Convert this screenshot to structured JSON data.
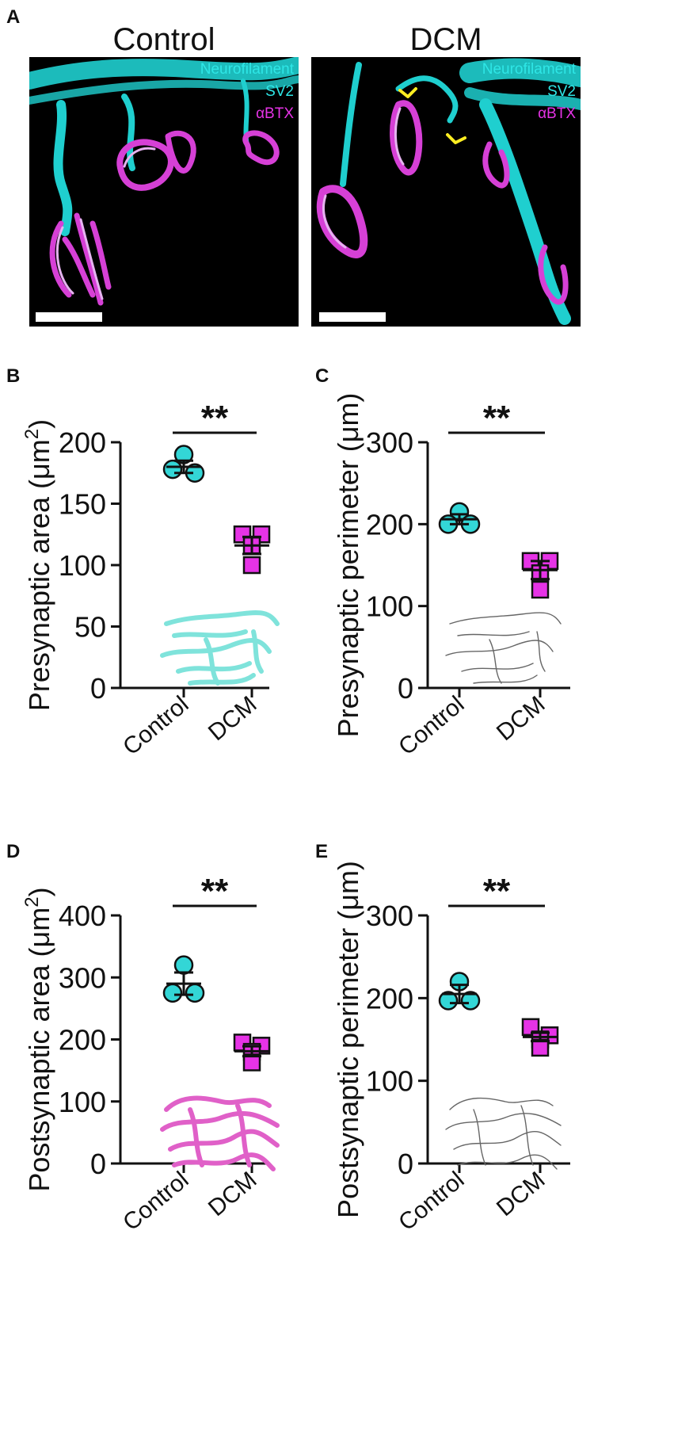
{
  "figure": {
    "panel_a": {
      "letter": "A",
      "images": [
        {
          "title": "Control",
          "legend": [
            {
              "text": "Neurofilament",
              "color": "#2ee6e6"
            },
            {
              "text": "SV2",
              "color": "#2ee6e6"
            },
            {
              "text": "αBTX",
              "color": "#e633e6"
            }
          ]
        },
        {
          "title": "DCM",
          "legend": [
            {
              "text": "Neurofilament",
              "color": "#2ee6e6"
            },
            {
              "text": "SV2",
              "color": "#2ee6e6"
            },
            {
              "text": "αBTX",
              "color": "#e633e6"
            }
          ]
        }
      ]
    }
  },
  "colors": {
    "control": "#33d6d6",
    "dcm": "#e633e6",
    "arrowhead": "#ffee22",
    "postsyn_illustration": "#e060c8",
    "presyn_illustration": "#7fe3db"
  },
  "chart_data": [
    {
      "panel": "B",
      "type": "scatter",
      "ylabel": "Presynaptic area (μm",
      "ylabel_sup": "2",
      "ylabel_end": ")",
      "ylim": [
        0,
        200
      ],
      "yticks": [
        0,
        50,
        100,
        150,
        200
      ],
      "categories": [
        "Control",
        "DCM"
      ],
      "significance": "**",
      "illustration": "presyn-filled",
      "series": [
        {
          "marker": "circle",
          "color": "#33d6d6",
          "points": [
            190,
            178,
            175
          ],
          "mean": 180,
          "sem": 5
        },
        {
          "marker": "square",
          "color": "#e633e6",
          "points": [
            125,
            125,
            116,
            100
          ],
          "mean": 116,
          "sem": 7
        }
      ]
    },
    {
      "panel": "C",
      "type": "scatter",
      "ylabel": "Presynaptic perimeter (μm)",
      "ylim": [
        0,
        300
      ],
      "yticks": [
        0,
        100,
        200,
        300
      ],
      "categories": [
        "Control",
        "DCM"
      ],
      "significance": "**",
      "illustration": "presyn-outline",
      "series": [
        {
          "marker": "circle",
          "color": "#33d6d6",
          "points": [
            215,
            200,
            200
          ],
          "mean": 206,
          "sem": 6
        },
        {
          "marker": "square",
          "color": "#e633e6",
          "points": [
            155,
            155,
            140,
            120
          ],
          "mean": 144,
          "sem": 11
        }
      ]
    },
    {
      "panel": "D",
      "type": "scatter",
      "ylabel": "Postsynaptic area (μm",
      "ylabel_sup": "2",
      "ylabel_end": ")",
      "ylim": [
        0,
        400
      ],
      "yticks": [
        0,
        100,
        200,
        300,
        400
      ],
      "categories": [
        "Control",
        "DCM"
      ],
      "significance": "**",
      "illustration": "postsyn-filled",
      "series": [
        {
          "marker": "circle",
          "color": "#33d6d6",
          "points": [
            320,
            275,
            275
          ],
          "mean": 290,
          "sem": 18
        },
        {
          "marker": "square",
          "color": "#e633e6",
          "points": [
            195,
            190,
            180,
            163
          ],
          "mean": 181,
          "sem": 8
        }
      ]
    },
    {
      "panel": "E",
      "type": "scatter",
      "ylabel": "Postsynaptic perimeter (μm)",
      "ylim": [
        0,
        300
      ],
      "yticks": [
        0,
        100,
        200,
        300
      ],
      "categories": [
        "Control",
        "DCM"
      ],
      "significance": "**",
      "illustration": "postsyn-outline",
      "series": [
        {
          "marker": "circle",
          "color": "#33d6d6",
          "points": [
            220,
            197,
            197
          ],
          "mean": 205,
          "sem": 11
        },
        {
          "marker": "square",
          "color": "#e633e6",
          "points": [
            165,
            155,
            150,
            140
          ],
          "mean": 153,
          "sem": 5
        }
      ]
    }
  ]
}
